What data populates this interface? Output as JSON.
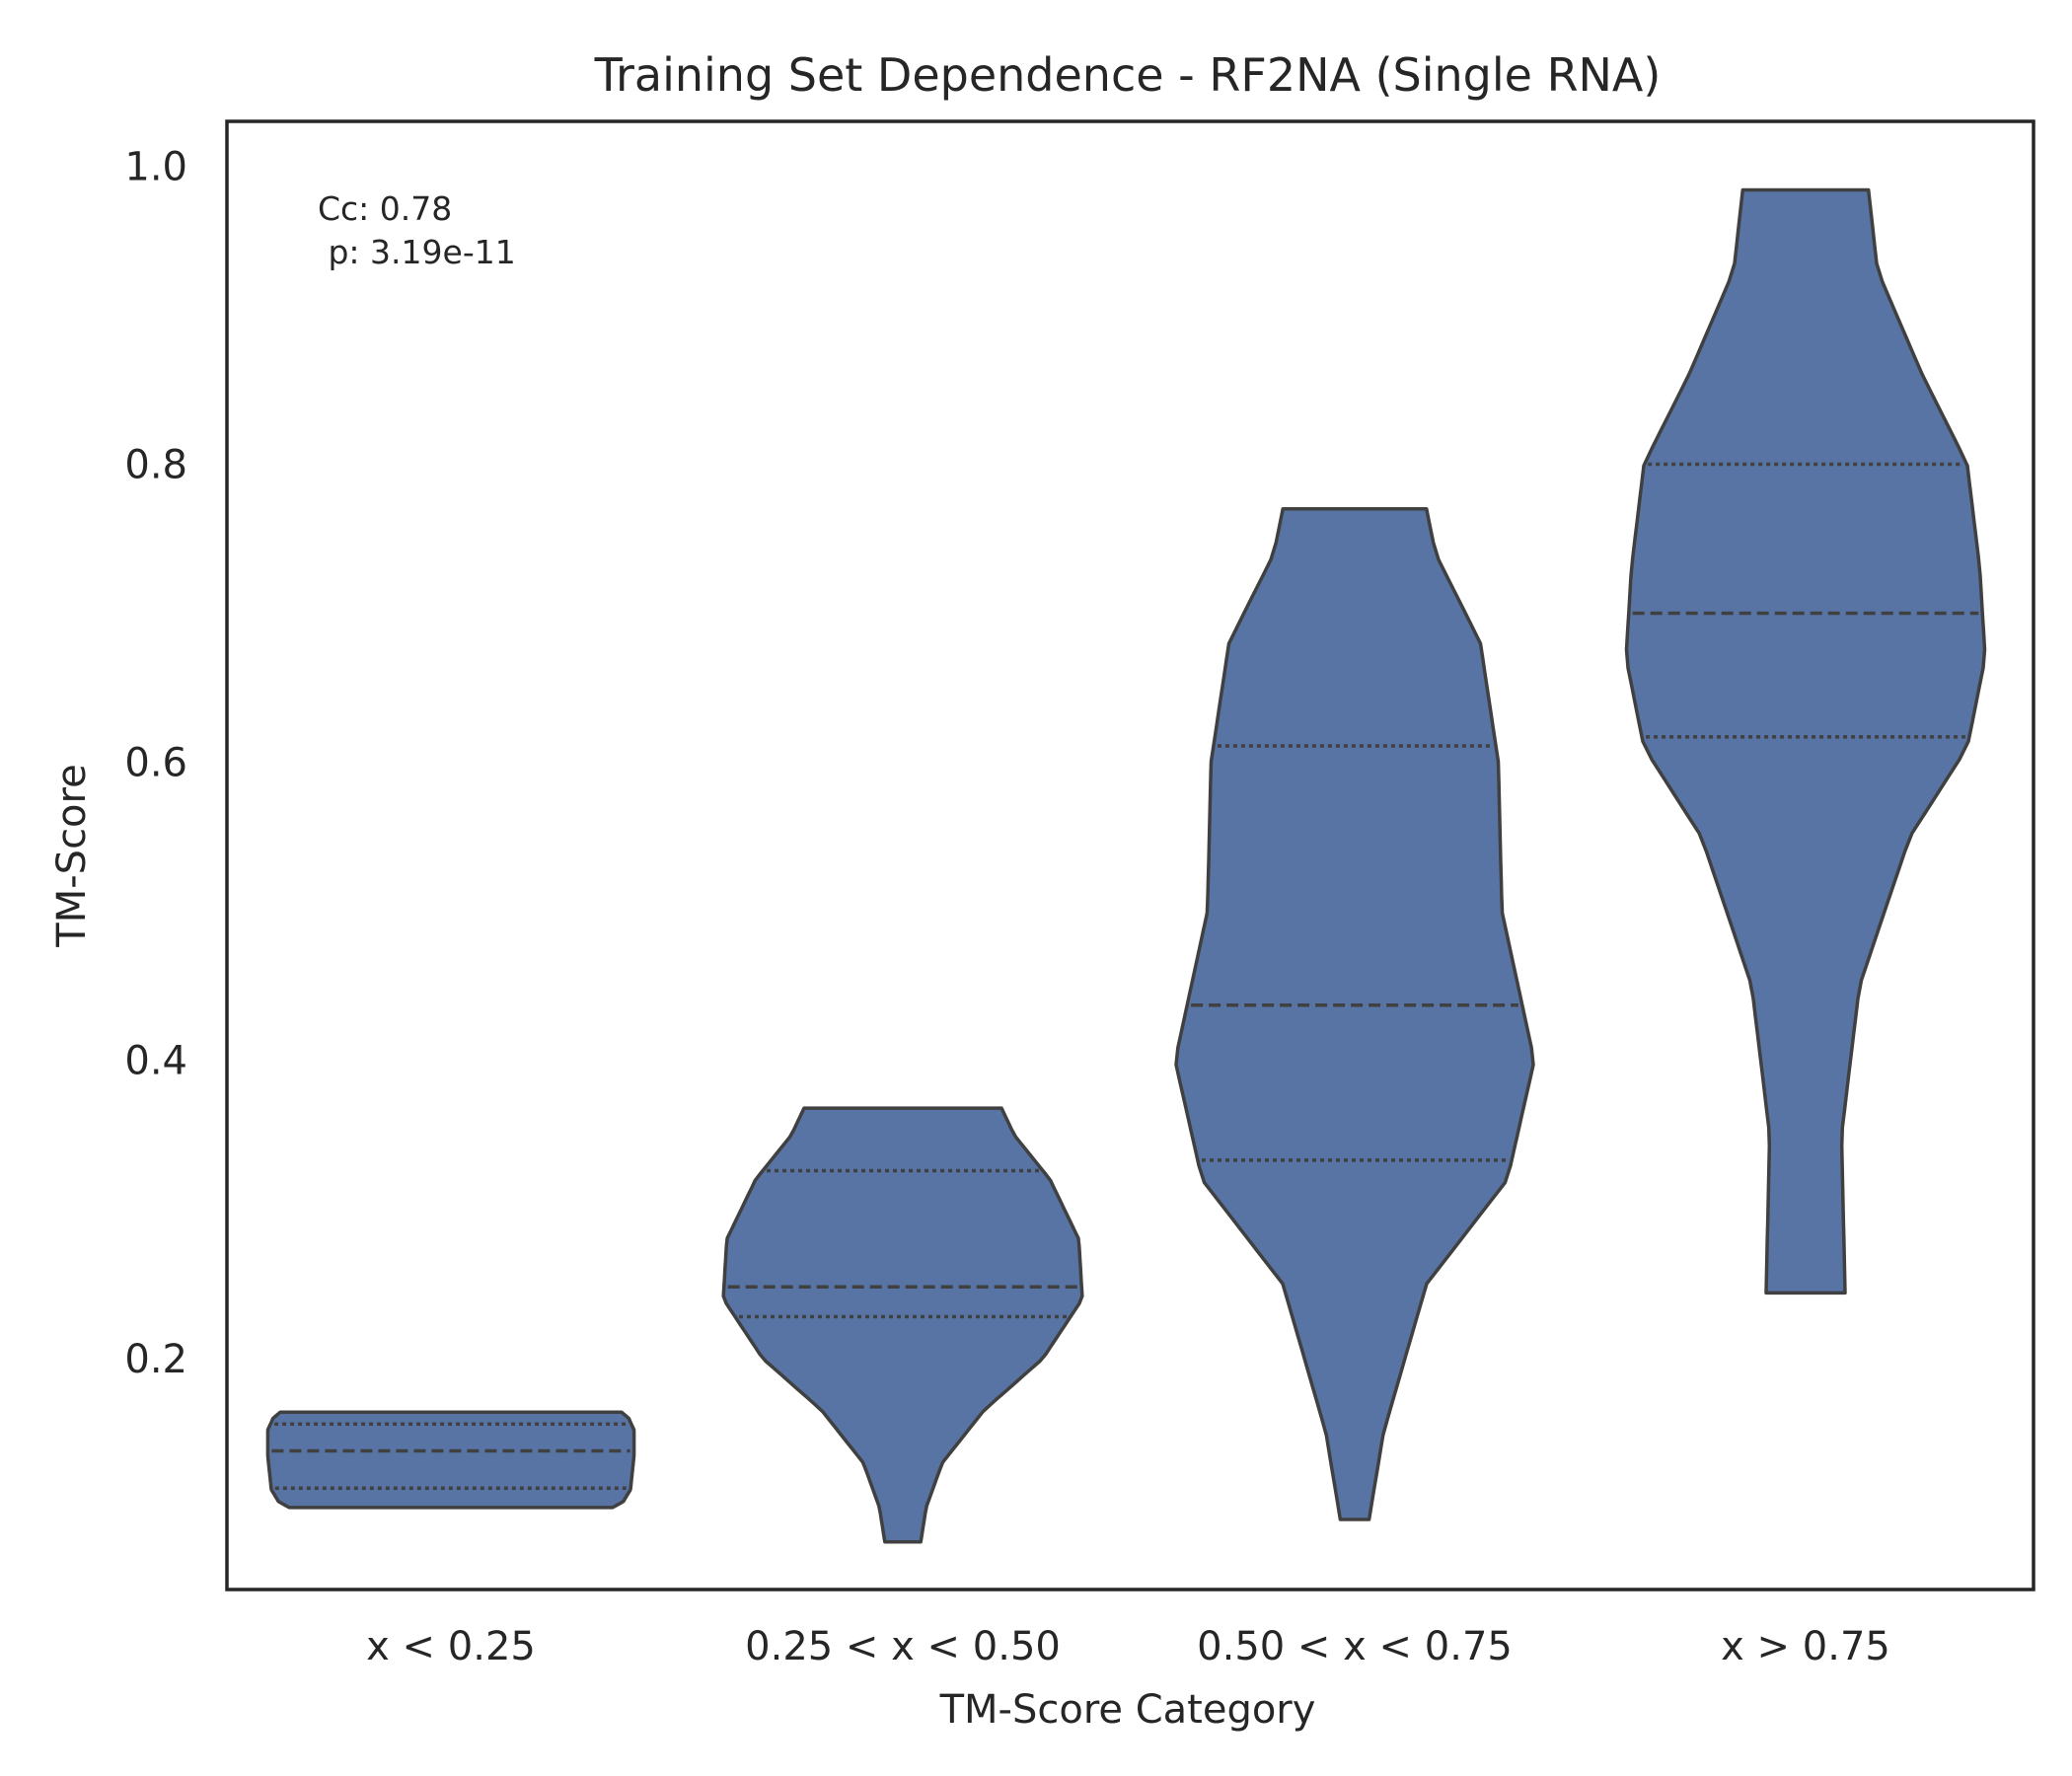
{
  "chart_data": {
    "type": "violin",
    "title": "Training Set Dependence - RF2NA (Single RNA)",
    "xlabel": "TM-Score Category",
    "ylabel": "TM-Score",
    "ylim": [
      0.045,
      1.03
    ],
    "yticks": [
      "0.2",
      "0.4",
      "0.6",
      "0.8",
      "1.0"
    ],
    "categories": [
      "x < 0.25",
      "0.25 < x < 0.50",
      "0.50 < x < 0.75",
      "x > 0.75"
    ],
    "annotation": {
      "line1": "Cc: 0.78",
      "line2": " p: 3.19e-11"
    },
    "fill_color": "#5874a5",
    "edge_color": "#404040",
    "violins": [
      {
        "category": "x < 0.25",
        "min": 0.1,
        "max": 0.164,
        "q1": 0.113,
        "median": 0.138,
        "q3": 0.156,
        "profile": [
          [
            0.1,
            0.9
          ],
          [
            0.104,
            0.96
          ],
          [
            0.112,
            1.0
          ],
          [
            0.135,
            1.02
          ],
          [
            0.152,
            1.02
          ],
          [
            0.16,
            0.99
          ],
          [
            0.164,
            0.95
          ]
        ]
      },
      {
        "category": "0.25 < x < 0.50",
        "min": 0.077,
        "max": 0.368,
        "q1": 0.228,
        "median": 0.248,
        "q3": 0.326,
        "profile": [
          [
            0.077,
            0.1
          ],
          [
            0.1,
            0.13
          ],
          [
            0.13,
            0.22
          ],
          [
            0.165,
            0.45
          ],
          [
            0.2,
            0.78
          ],
          [
            0.24,
            1.0
          ],
          [
            0.28,
            0.98
          ],
          [
            0.32,
            0.82
          ],
          [
            0.35,
            0.62
          ],
          [
            0.368,
            0.55
          ]
        ]
      },
      {
        "category": "0.50 < x < 0.75",
        "min": 0.092,
        "max": 0.77,
        "q1": 0.333,
        "median": 0.437,
        "q3": 0.611,
        "profile": [
          [
            0.092,
            0.08
          ],
          [
            0.15,
            0.16
          ],
          [
            0.25,
            0.4
          ],
          [
            0.32,
            0.85
          ],
          [
            0.4,
            1.0
          ],
          [
            0.5,
            0.82
          ],
          [
            0.6,
            0.8
          ],
          [
            0.68,
            0.7
          ],
          [
            0.74,
            0.45
          ],
          [
            0.77,
            0.4
          ]
        ]
      },
      {
        "category": "x > 0.75",
        "min": 0.244,
        "max": 0.984,
        "q1": 0.617,
        "median": 0.7,
        "q3": 0.8,
        "profile": [
          [
            0.244,
            0.22
          ],
          [
            0.35,
            0.2
          ],
          [
            0.45,
            0.3
          ],
          [
            0.55,
            0.58
          ],
          [
            0.61,
            0.9
          ],
          [
            0.67,
            1.0
          ],
          [
            0.73,
            0.97
          ],
          [
            0.8,
            0.9
          ],
          [
            0.86,
            0.65
          ],
          [
            0.93,
            0.4
          ],
          [
            0.984,
            0.35
          ]
        ]
      }
    ]
  }
}
